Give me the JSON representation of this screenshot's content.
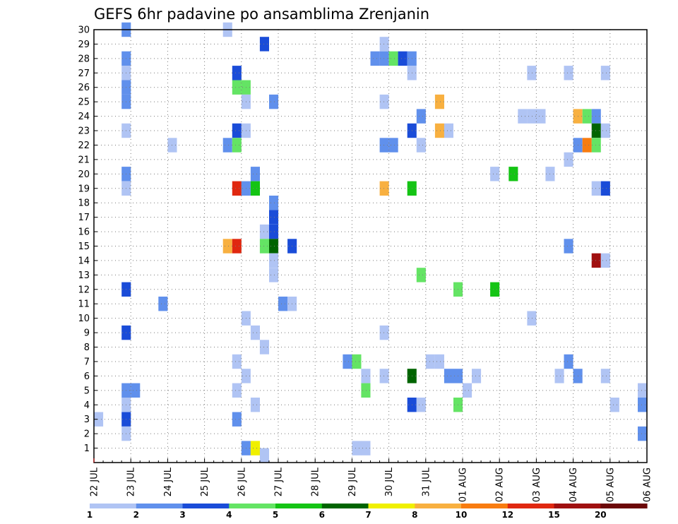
{
  "chart_data": {
    "type": "heatmap",
    "title": "GEFS 6hr padavine po ansamblima Zrenjanin",
    "xlabel": "",
    "ylabel": "",
    "x_tick_labels": [
      "22 JUL",
      "23 JUL",
      "24 JUL",
      "25 JUL",
      "26 JUL",
      "27 JUL",
      "28 JUL",
      "29 JUL",
      "30 JUL",
      "31 JUL",
      "01 AUG",
      "02 AUG",
      "03 AUG",
      "04 AUG",
      "05 AUG",
      "06 AUG"
    ],
    "x_range_days": [
      0,
      15
    ],
    "y_tick_labels": [
      "1",
      "2",
      "3",
      "4",
      "5",
      "6",
      "7",
      "8",
      "9",
      "10",
      "11",
      "12",
      "13",
      "14",
      "15",
      "16",
      "17",
      "18",
      "19",
      "20",
      "21",
      "22",
      "23",
      "24",
      "25",
      "26",
      "27",
      "28",
      "29",
      "30"
    ],
    "y_range": [
      0,
      30
    ],
    "grid": true,
    "colorbar": {
      "labels": [
        "1",
        "2",
        "3",
        "4",
        "5",
        "6",
        "7",
        "8",
        "10",
        "12",
        "15",
        "20"
      ],
      "colors": [
        "#b0c4f4",
        "#6090ec",
        "#1a4cd8",
        "#64e464",
        "#14c414",
        "#006400",
        "#f0f000",
        "#f8b040",
        "#f87c10",
        "#e02810",
        "#a01010",
        "#6c0808"
      ]
    },
    "cells": [
      {
        "member": 30,
        "day": 0.875,
        "level": 2
      },
      {
        "member": 30,
        "day": 3.625,
        "level": 1
      },
      {
        "member": 29,
        "day": 4.625,
        "level": 3
      },
      {
        "member": 29,
        "day": 7.875,
        "level": 1
      },
      {
        "member": 28,
        "day": 0.875,
        "level": 2
      },
      {
        "member": 28,
        "day": 7.625,
        "level": 2
      },
      {
        "member": 28,
        "day": 7.875,
        "level": 2
      },
      {
        "member": 28,
        "day": 8.125,
        "level": 4
      },
      {
        "member": 28,
        "day": 8.375,
        "level": 3
      },
      {
        "member": 28,
        "day": 8.625,
        "level": 2
      },
      {
        "member": 27,
        "day": 0.875,
        "level": 1
      },
      {
        "member": 27,
        "day": 3.875,
        "level": 3
      },
      {
        "member": 27,
        "day": 8.625,
        "level": 1
      },
      {
        "member": 27,
        "day": 11.875,
        "level": 1
      },
      {
        "member": 27,
        "day": 12.875,
        "level": 1
      },
      {
        "member": 27,
        "day": 13.875,
        "level": 1
      },
      {
        "member": 26,
        "day": 0.875,
        "level": 2
      },
      {
        "member": 26,
        "day": 3.875,
        "level": 4
      },
      {
        "member": 26,
        "day": 4.125,
        "level": 4
      },
      {
        "member": 25,
        "day": 0.875,
        "level": 2
      },
      {
        "member": 25,
        "day": 4.125,
        "level": 1
      },
      {
        "member": 25,
        "day": 4.875,
        "level": 2
      },
      {
        "member": 25,
        "day": 7.875,
        "level": 1
      },
      {
        "member": 25,
        "day": 9.375,
        "level": 8
      },
      {
        "member": 24,
        "day": 8.875,
        "level": 2
      },
      {
        "member": 24,
        "day": 11.625,
        "level": 1
      },
      {
        "member": 24,
        "day": 11.875,
        "level": 1
      },
      {
        "member": 24,
        "day": 12.125,
        "level": 1
      },
      {
        "member": 24,
        "day": 13.125,
        "level": 8
      },
      {
        "member": 24,
        "day": 13.375,
        "level": 4
      },
      {
        "member": 24,
        "day": 13.625,
        "level": 2
      },
      {
        "member": 23,
        "day": 0.875,
        "level": 1
      },
      {
        "member": 23,
        "day": 3.875,
        "level": 3
      },
      {
        "member": 23,
        "day": 4.125,
        "level": 1
      },
      {
        "member": 23,
        "day": 8.625,
        "level": 3
      },
      {
        "member": 23,
        "day": 9.375,
        "level": 8
      },
      {
        "member": 23,
        "day": 9.625,
        "level": 1
      },
      {
        "member": 23,
        "day": 13.625,
        "level": 6
      },
      {
        "member": 23,
        "day": 13.875,
        "level": 1
      },
      {
        "member": 22,
        "day": 2.125,
        "level": 1
      },
      {
        "member": 22,
        "day": 3.625,
        "level": 2
      },
      {
        "member": 22,
        "day": 3.875,
        "level": 4
      },
      {
        "member": 22,
        "day": 7.875,
        "level": 2
      },
      {
        "member": 22,
        "day": 8.125,
        "level": 2
      },
      {
        "member": 22,
        "day": 8.875,
        "level": 1
      },
      {
        "member": 22,
        "day": 13.125,
        "level": 2
      },
      {
        "member": 22,
        "day": 13.375,
        "level": 9
      },
      {
        "member": 22,
        "day": 13.625,
        "level": 4
      },
      {
        "member": 21,
        "day": 12.875,
        "level": 1
      },
      {
        "member": 20,
        "day": 0.875,
        "level": 2
      },
      {
        "member": 20,
        "day": 4.375,
        "level": 2
      },
      {
        "member": 20,
        "day": 10.875,
        "level": 1
      },
      {
        "member": 20,
        "day": 11.375,
        "level": 5
      },
      {
        "member": 20,
        "day": 12.375,
        "level": 1
      },
      {
        "member": 19,
        "day": 0.875,
        "level": 1
      },
      {
        "member": 19,
        "day": 3.875,
        "level": 10
      },
      {
        "member": 19,
        "day": 4.125,
        "level": 2
      },
      {
        "member": 19,
        "day": 4.375,
        "level": 5
      },
      {
        "member": 19,
        "day": 7.875,
        "level": 8
      },
      {
        "member": 19,
        "day": 8.625,
        "level": 5
      },
      {
        "member": 19,
        "day": 13.625,
        "level": 1
      },
      {
        "member": 19,
        "day": 13.875,
        "level": 3
      },
      {
        "member": 18,
        "day": 4.875,
        "level": 2
      },
      {
        "member": 17,
        "day": 4.875,
        "level": 3
      },
      {
        "member": 16,
        "day": 4.625,
        "level": 1
      },
      {
        "member": 16,
        "day": 4.875,
        "level": 3
      },
      {
        "member": 15,
        "day": 3.625,
        "level": 8
      },
      {
        "member": 15,
        "day": 3.875,
        "level": 10
      },
      {
        "member": 15,
        "day": 4.625,
        "level": 4
      },
      {
        "member": 15,
        "day": 4.875,
        "level": 6
      },
      {
        "member": 15,
        "day": 5.375,
        "level": 3
      },
      {
        "member": 15,
        "day": 12.875,
        "level": 2
      },
      {
        "member": 14,
        "day": 4.875,
        "level": 1
      },
      {
        "member": 14,
        "day": 13.625,
        "level": 11
      },
      {
        "member": 14,
        "day": 13.875,
        "level": 1
      },
      {
        "member": 13,
        "day": 4.875,
        "level": 1
      },
      {
        "member": 13,
        "day": 8.875,
        "level": 4
      },
      {
        "member": 12,
        "day": 0.875,
        "level": 3
      },
      {
        "member": 12,
        "day": 9.875,
        "level": 4
      },
      {
        "member": 12,
        "day": 10.875,
        "level": 5
      },
      {
        "member": 11,
        "day": 1.875,
        "level": 2
      },
      {
        "member": 11,
        "day": 5.125,
        "level": 2
      },
      {
        "member": 11,
        "day": 5.375,
        "level": 1
      },
      {
        "member": 10,
        "day": 4.125,
        "level": 1
      },
      {
        "member": 10,
        "day": 11.875,
        "level": 1
      },
      {
        "member": 9,
        "day": 0.875,
        "level": 3
      },
      {
        "member": 9,
        "day": 4.375,
        "level": 1
      },
      {
        "member": 9,
        "day": 7.875,
        "level": 1
      },
      {
        "member": 8,
        "day": 4.625,
        "level": 1
      },
      {
        "member": 7,
        "day": 3.875,
        "level": 1
      },
      {
        "member": 7,
        "day": 6.875,
        "level": 2
      },
      {
        "member": 7,
        "day": 7.125,
        "level": 4
      },
      {
        "member": 7,
        "day": 9.125,
        "level": 1
      },
      {
        "member": 7,
        "day": 9.375,
        "level": 1
      },
      {
        "member": 7,
        "day": 12.875,
        "level": 2
      },
      {
        "member": 6,
        "day": 4.125,
        "level": 1
      },
      {
        "member": 6,
        "day": 7.375,
        "level": 1
      },
      {
        "member": 6,
        "day": 7.875,
        "level": 1
      },
      {
        "member": 6,
        "day": 8.625,
        "level": 6
      },
      {
        "member": 6,
        "day": 9.625,
        "level": 2
      },
      {
        "member": 6,
        "day": 9.875,
        "level": 2
      },
      {
        "member": 6,
        "day": 10.375,
        "level": 1
      },
      {
        "member": 6,
        "day": 12.625,
        "level": 1
      },
      {
        "member": 6,
        "day": 13.125,
        "level": 2
      },
      {
        "member": 6,
        "day": 13.875,
        "level": 1
      },
      {
        "member": 5,
        "day": 0.875,
        "level": 2
      },
      {
        "member": 5,
        "day": 1.125,
        "level": 2
      },
      {
        "member": 5,
        "day": 3.875,
        "level": 1
      },
      {
        "member": 5,
        "day": 7.375,
        "level": 4
      },
      {
        "member": 5,
        "day": 10.125,
        "level": 1
      },
      {
        "member": 5,
        "day": 14.875,
        "level": 1
      },
      {
        "member": 4,
        "day": 0.875,
        "level": 1
      },
      {
        "member": 4,
        "day": 4.375,
        "level": 1
      },
      {
        "member": 4,
        "day": 8.625,
        "level": 3
      },
      {
        "member": 4,
        "day": 8.875,
        "level": 1
      },
      {
        "member": 4,
        "day": 9.875,
        "level": 4
      },
      {
        "member": 4,
        "day": 14.125,
        "level": 1
      },
      {
        "member": 4,
        "day": 14.875,
        "level": 2
      },
      {
        "member": 3,
        "day": 0.125,
        "level": 1
      },
      {
        "member": 3,
        "day": 0.875,
        "level": 3
      },
      {
        "member": 3,
        "day": 3.875,
        "level": 2
      },
      {
        "member": 2,
        "day": 0.875,
        "level": 1
      },
      {
        "member": 2,
        "day": 14.875,
        "level": 2
      },
      {
        "member": 1,
        "day": 4.125,
        "level": 2
      },
      {
        "member": 1,
        "day": 4.375,
        "level": 7
      },
      {
        "member": 1,
        "day": 7.125,
        "level": 1
      },
      {
        "member": 1,
        "day": 7.375,
        "level": 1
      },
      {
        "member": 0.5,
        "day": 4.625,
        "level": 1
      }
    ]
  }
}
